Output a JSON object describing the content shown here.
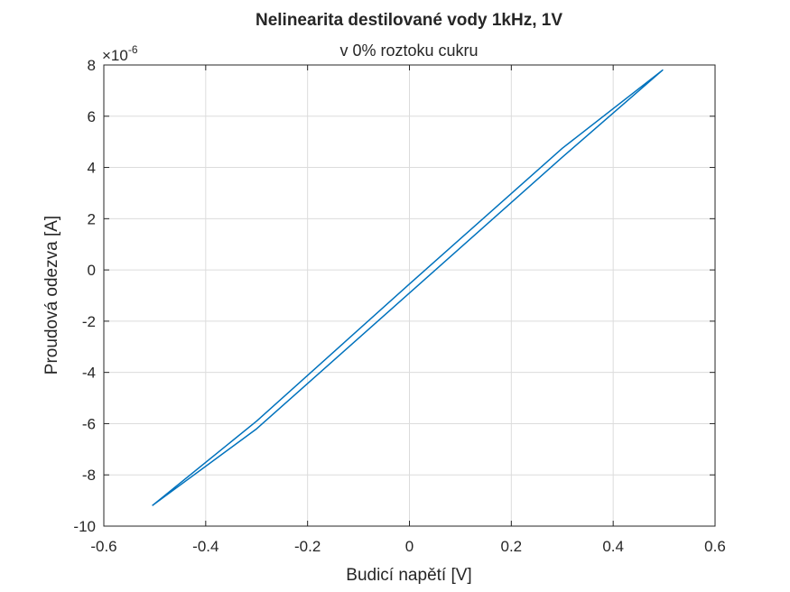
{
  "chart_data": {
    "type": "line",
    "title": "Nelinearita destilované vody 1kHz, 1V",
    "subtitle": "v 0% roztoku cukru",
    "xlabel": "Budicí napětí [V]",
    "ylabel": "Proudová odezva [A]",
    "xlim": [
      -0.6,
      0.6
    ],
    "ylim": [
      -10,
      8
    ],
    "y_exponent_label": "×10",
    "y_exponent_power": "-6",
    "xticks": [
      -0.6,
      -0.4,
      -0.2,
      0,
      0.2,
      0.4,
      0.6
    ],
    "xtick_labels": [
      "-0.6",
      "-0.4",
      "-0.2",
      "0",
      "0.2",
      "0.4",
      "0.6"
    ],
    "yticks": [
      -10,
      -8,
      -6,
      -4,
      -2,
      0,
      2,
      4,
      6,
      8
    ],
    "ytick_labels": [
      "-10",
      "-8",
      "-6",
      "-4",
      "-2",
      "0",
      "2",
      "4",
      "6",
      "8"
    ],
    "grid": true,
    "line_color": "#0072bd",
    "series": [
      {
        "x": [
          -0.505,
          -0.3,
          0.0,
          0.3,
          0.497,
          0.3,
          0.0,
          -0.3,
          -0.505
        ],
        "y": [
          -9.2,
          -5.9,
          -0.55,
          4.75,
          7.8,
          4.4,
          -0.9,
          -6.2,
          -9.2
        ]
      }
    ]
  }
}
